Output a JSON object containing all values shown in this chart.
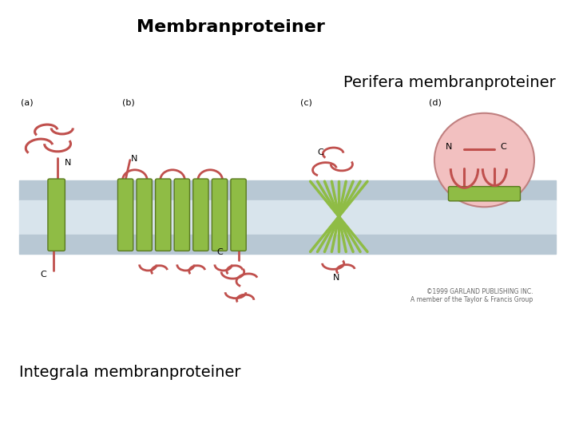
{
  "title": "Membranproteiner",
  "subtitle_right": "Perifera membranproteiner",
  "subtitle_left": "Integrala membranproteiner",
  "background_color": "#ffffff",
  "title_fontsize": 16,
  "subtitle_fontsize": 14,
  "membrane_color": "#b8c8d4",
  "membrane_mid_color": "#d8e4ec",
  "green_color": "#8fbc45",
  "green_edge": "#5a7a20",
  "red_color": "#c0504d",
  "pink_bg": "#f2c0c0",
  "pink_edge": "#c08080",
  "label_a": "(a)",
  "label_b": "(b)",
  "label_c": "(c)",
  "label_d": "(d)",
  "copyright": "©1999 GARLAND PUBLISHING INC.\nA member of the Taylor & Francis Group"
}
